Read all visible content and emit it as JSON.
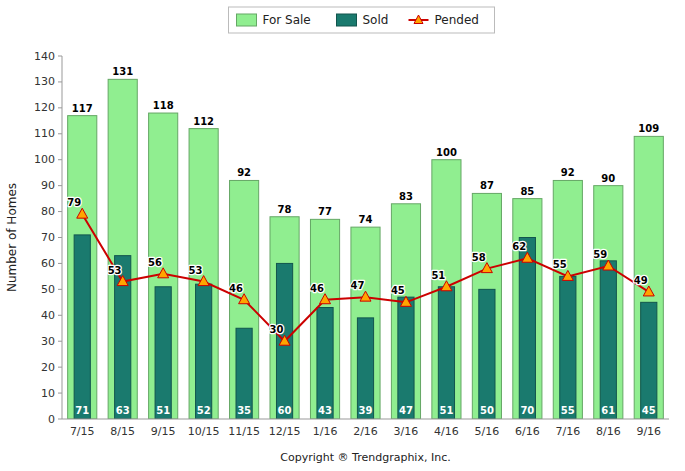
{
  "chart_data": {
    "type": "bar",
    "categories": [
      "7/15",
      "8/15",
      "9/15",
      "10/15",
      "11/15",
      "12/15",
      "1/16",
      "2/16",
      "3/16",
      "4/16",
      "5/16",
      "6/16",
      "7/16",
      "8/16",
      "9/16"
    ],
    "series": [
      {
        "name": "For Sale",
        "color": "#90EE90",
        "values": [
          117,
          131,
          118,
          112,
          92,
          78,
          77,
          74,
          83,
          100,
          87,
          85,
          92,
          90,
          109
        ]
      },
      {
        "name": "Sold",
        "color": "#1a7a6e",
        "values": [
          71,
          63,
          51,
          52,
          35,
          60,
          43,
          39,
          47,
          51,
          50,
          70,
          55,
          61,
          45
        ]
      },
      {
        "name": "Pended",
        "type": "line",
        "color": "#cc0000",
        "marker": "triangle",
        "values": [
          79,
          53,
          56,
          53,
          46,
          30,
          46,
          47,
          45,
          51,
          58,
          62,
          55,
          59,
          49
        ]
      }
    ],
    "ylabel": "Number of Homes",
    "xlabel": "Copyright ® Trendgraphix, Inc.",
    "ylim": [
      0,
      140
    ],
    "yticks": [
      0,
      10,
      20,
      30,
      40,
      50,
      60,
      70,
      80,
      90,
      100,
      110,
      120,
      130,
      140
    ],
    "grid": false,
    "data_labels": true,
    "legend": "top"
  }
}
